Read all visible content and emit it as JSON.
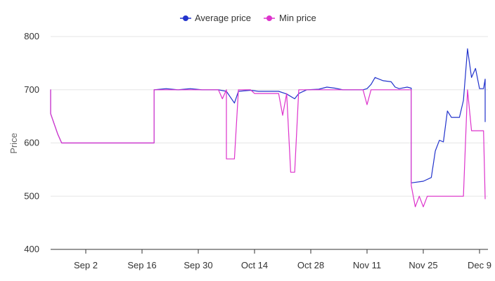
{
  "colors": {
    "average": "#2233cc",
    "min": "#dd33cc",
    "grid": "#e6e6e6",
    "axis": "#333333"
  },
  "legend": [
    {
      "series": "average",
      "label": "Average price",
      "icon": "circle-marker-icon"
    },
    {
      "series": "min",
      "label": "Min price",
      "icon": "circle-marker-icon"
    }
  ],
  "chart_data": {
    "type": "line",
    "title": "",
    "xlabel": "",
    "ylabel": "Price",
    "ylim": [
      400,
      800
    ],
    "yticks": [
      400,
      500,
      600,
      700,
      800
    ],
    "xlim": [
      "2024-08-19",
      "2024-12-11"
    ],
    "xticks": [
      {
        "date": "2024-09-02",
        "label": "Sep 2"
      },
      {
        "date": "2024-09-16",
        "label": "Sep 16"
      },
      {
        "date": "2024-09-30",
        "label": "Sep 30"
      },
      {
        "date": "2024-10-14",
        "label": "Oct 14"
      },
      {
        "date": "2024-10-28",
        "label": "Oct 28"
      },
      {
        "date": "2024-11-11",
        "label": "Nov 11"
      },
      {
        "date": "2024-11-25",
        "label": "Nov 25"
      },
      {
        "date": "2024-12-09",
        "label": "Dec 9"
      }
    ],
    "grid": true,
    "legend_position": "top-center",
    "series": [
      {
        "key": "average",
        "name": "Average price",
        "points": [
          [
            "2024-08-20",
            700
          ],
          [
            "2024-08-23",
            655
          ],
          [
            "2024-08-26",
            617
          ],
          [
            "2024-08-27",
            600
          ],
          [
            "2024-09-02",
            600
          ],
          [
            "2024-09-16",
            600
          ],
          [
            "2024-09-19",
            600
          ],
          [
            "2024-09-19",
            700
          ],
          [
            "2024-09-22",
            702
          ],
          [
            "2024-09-25",
            700
          ],
          [
            "2024-09-28",
            702
          ],
          [
            "2024-10-01",
            700
          ],
          [
            "2024-10-05",
            700
          ],
          [
            "2024-10-07",
            697
          ],
          [
            "2024-10-09",
            675
          ],
          [
            "2024-10-10",
            697
          ],
          [
            "2024-10-13",
            699
          ],
          [
            "2024-10-15",
            697
          ],
          [
            "2024-10-20",
            697
          ],
          [
            "2024-10-22",
            692
          ],
          [
            "2024-10-24",
            683
          ],
          [
            "2024-10-25",
            693
          ],
          [
            "2024-10-27",
            700
          ],
          [
            "2024-10-30",
            701
          ],
          [
            "2024-11-01",
            705
          ],
          [
            "2024-11-03",
            703
          ],
          [
            "2024-11-05",
            700
          ],
          [
            "2024-11-10",
            700
          ],
          [
            "2024-11-11",
            702
          ],
          [
            "2024-11-12",
            710
          ],
          [
            "2024-11-13",
            723
          ],
          [
            "2024-11-15",
            717
          ],
          [
            "2024-11-17",
            715
          ],
          [
            "2024-11-18",
            705
          ],
          [
            "2024-11-19",
            702
          ],
          [
            "2024-11-21",
            705
          ],
          [
            "2024-11-22",
            703
          ],
          [
            "2024-11-22",
            525
          ],
          [
            "2024-11-25",
            528
          ],
          [
            "2024-11-27",
            535
          ],
          [
            "2024-11-28",
            585
          ],
          [
            "2024-11-29",
            605
          ],
          [
            "2024-11-30",
            602
          ],
          [
            "2024-12-01",
            660
          ],
          [
            "2024-12-02",
            648
          ],
          [
            "2024-12-04",
            648
          ],
          [
            "2024-12-05",
            680
          ],
          [
            "2024-12-06",
            777
          ],
          [
            "2024-12-07",
            723
          ],
          [
            "2024-12-08",
            740
          ],
          [
            "2024-12-09",
            702
          ],
          [
            "2024-12-10",
            702
          ],
          [
            "2024-12-11",
            720
          ],
          [
            "2024-12-12",
            640
          ],
          [
            "2024-12-13",
            705
          ]
        ]
      },
      {
        "key": "min",
        "name": "Min price",
        "points": [
          [
            "2024-08-20",
            700
          ],
          [
            "2024-08-23",
            655
          ],
          [
            "2024-08-26",
            617
          ],
          [
            "2024-08-27",
            600
          ],
          [
            "2024-09-02",
            600
          ],
          [
            "2024-09-16",
            600
          ],
          [
            "2024-09-19",
            600
          ],
          [
            "2024-09-19",
            700
          ],
          [
            "2024-10-05",
            700
          ],
          [
            "2024-10-06",
            683
          ],
          [
            "2024-10-07",
            700
          ],
          [
            "2024-10-07",
            570
          ],
          [
            "2024-10-09",
            570
          ],
          [
            "2024-10-10",
            700
          ],
          [
            "2024-10-13",
            700
          ],
          [
            "2024-10-14",
            693
          ],
          [
            "2024-10-20",
            693
          ],
          [
            "2024-10-21",
            652
          ],
          [
            "2024-10-22",
            693
          ],
          [
            "2024-10-23",
            545
          ],
          [
            "2024-10-24",
            545
          ],
          [
            "2024-10-25",
            700
          ],
          [
            "2024-11-10",
            700
          ],
          [
            "2024-11-11",
            672
          ],
          [
            "2024-11-12",
            700
          ],
          [
            "2024-11-22",
            700
          ],
          [
            "2024-11-22",
            520
          ],
          [
            "2024-11-23",
            480
          ],
          [
            "2024-11-24",
            500
          ],
          [
            "2024-11-25",
            480
          ],
          [
            "2024-11-26",
            500
          ],
          [
            "2024-12-05",
            500
          ],
          [
            "2024-12-06",
            700
          ],
          [
            "2024-12-07",
            623
          ],
          [
            "2024-12-10",
            623
          ],
          [
            "2024-12-11",
            495
          ],
          [
            "2024-12-13",
            495
          ]
        ]
      }
    ]
  }
}
